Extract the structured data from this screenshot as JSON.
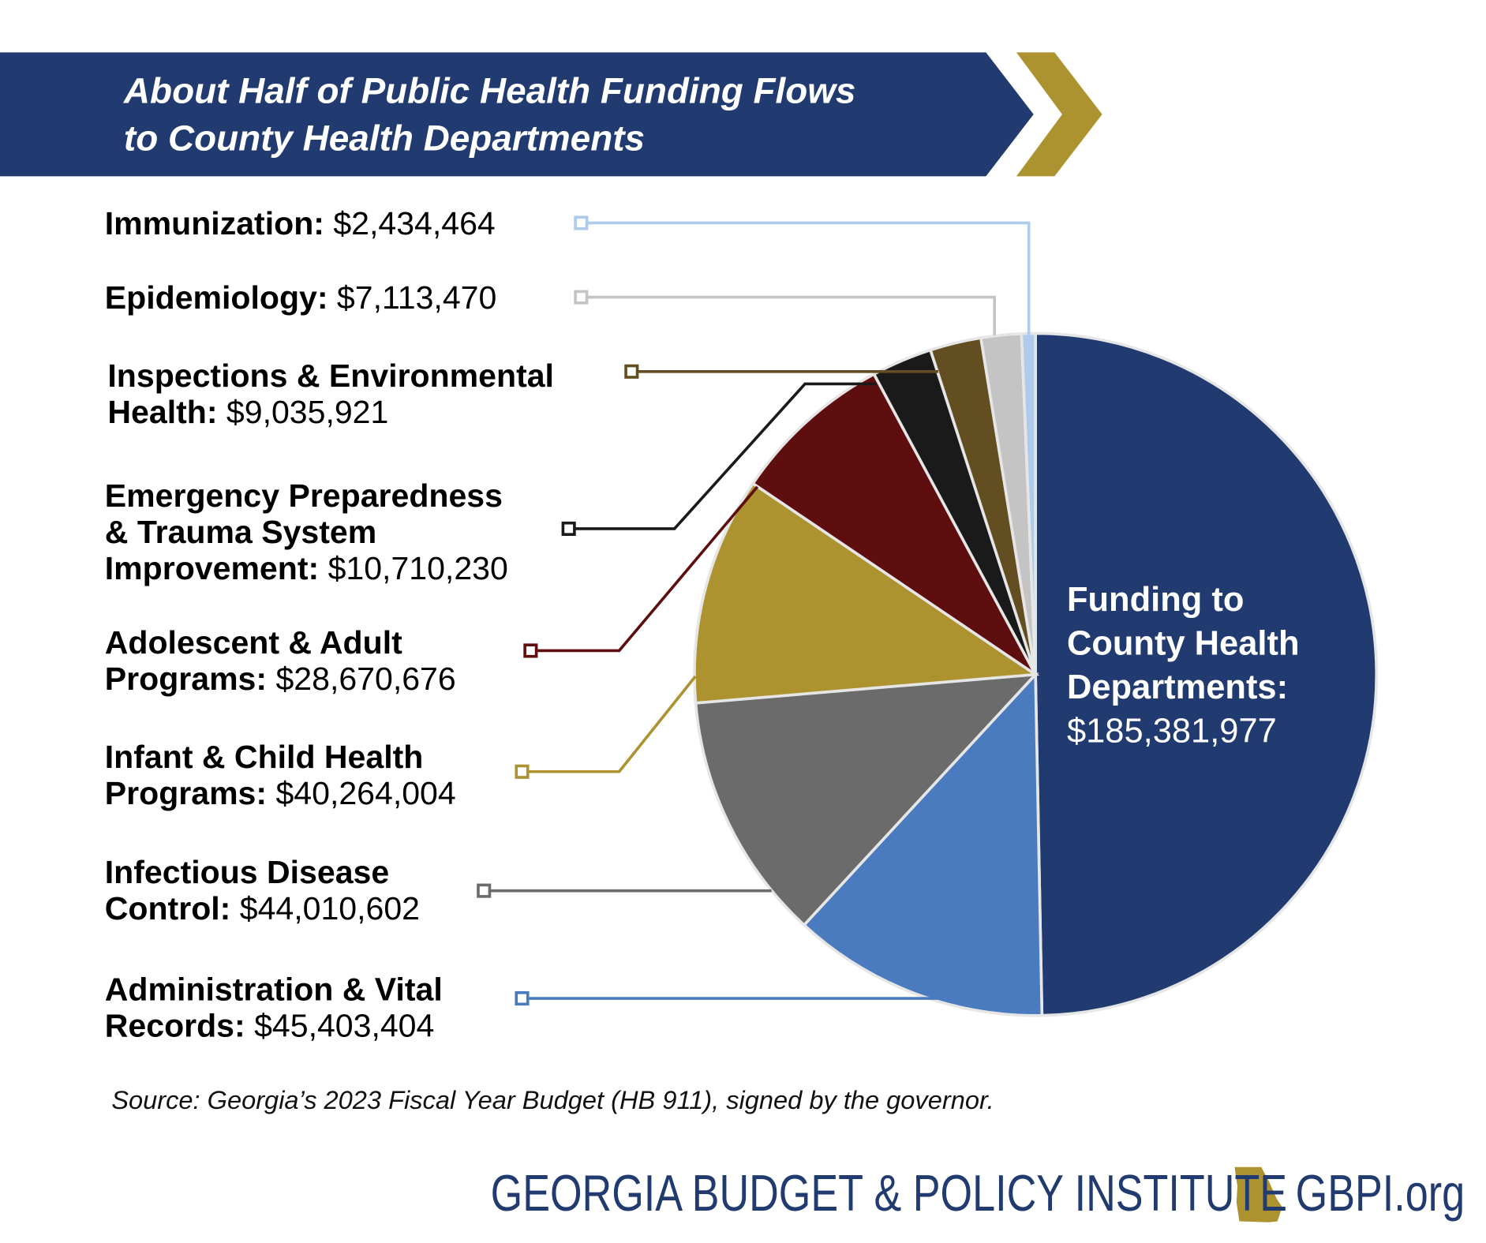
{
  "title": [
    "About Half of Public Health Funding Flows",
    "to County Health Departments"
  ],
  "chart_data": {
    "type": "pie",
    "title": "About Half of Public Health Funding Flows to County Health Departments",
    "direction": "clockwise from top",
    "slices": [
      {
        "label": "Funding to County Health Departments",
        "value": 185381977,
        "value_text": "$185,381,977",
        "color": "#213b70"
      },
      {
        "label": "Administration & Vital Records",
        "value": 45403404,
        "value_text": "$45,403,404",
        "color": "#4a7bbf"
      },
      {
        "label": "Infectious Disease Control",
        "value": 44010602,
        "value_text": "$44,010,602",
        "color": "#6b6b6b"
      },
      {
        "label": "Infant & Child Health Programs",
        "value": 40264004,
        "value_text": "$40,264,004",
        "color": "#ad9230"
      },
      {
        "label": "Adolescent & Adult Programs",
        "value": 28670676,
        "value_text": "$28,670,676",
        "color": "#5f0e10"
      },
      {
        "label": "Emergency Preparedness & Trauma System Improvement",
        "value": 10710230,
        "value_text": "$10,710,230",
        "color": "#1a1a1a"
      },
      {
        "label": "Inspections & Environmental Health",
        "value": 9035921,
        "value_text": "$9,035,921",
        "color": "#624e20"
      },
      {
        "label": "Epidemiology",
        "value": 7113470,
        "value_text": "$7,113,470",
        "color": "#c4c4c4"
      },
      {
        "label": "Immunization",
        "value": 2434464,
        "value_text": "$2,434,464",
        "color": "#aecbec"
      }
    ]
  },
  "labels": {
    "immunization": {
      "l1": "Immunization:",
      "v": "$2,434,464"
    },
    "epidemiology": {
      "l1": "Epidemiology:",
      "v": "$7,113,470"
    },
    "inspections": {
      "l1": "Inspections & Environmental",
      "l2": "Health:",
      "v": "$9,035,921"
    },
    "emergency": {
      "l1": "Emergency Preparedness",
      "l2": "& Trauma System",
      "l3": "Improvement:",
      "v": "$10,710,230"
    },
    "adolescent": {
      "l1": "Adolescent & Adult",
      "l2": "Programs:",
      "v": "$28,670,676"
    },
    "infant": {
      "l1": "Infant & Child Health",
      "l2": "Programs:",
      "v": "$40,264,004"
    },
    "infectious": {
      "l1": "Infectious Disease",
      "l2": "Control:",
      "v": "$44,010,602"
    },
    "admin": {
      "l1": "Administration & Vital",
      "l2": "Records:",
      "v": "$45,403,404"
    },
    "county": {
      "l1": "Funding to",
      "l2": "County Health",
      "l3": "Departments:",
      "v": "$185,381,977"
    }
  },
  "source": "Source: Georgia’s 2023 Fiscal Year Budget (HB 911), signed by the governor.",
  "footer": {
    "org": "GEORGIA BUDGET & POLICY INSTITUTE",
    "url": "GBPI.org",
    "logo_icon": "georgia-state-map-icon"
  },
  "colors": {
    "navy": "#213b70",
    "gold": "#ad9230"
  }
}
